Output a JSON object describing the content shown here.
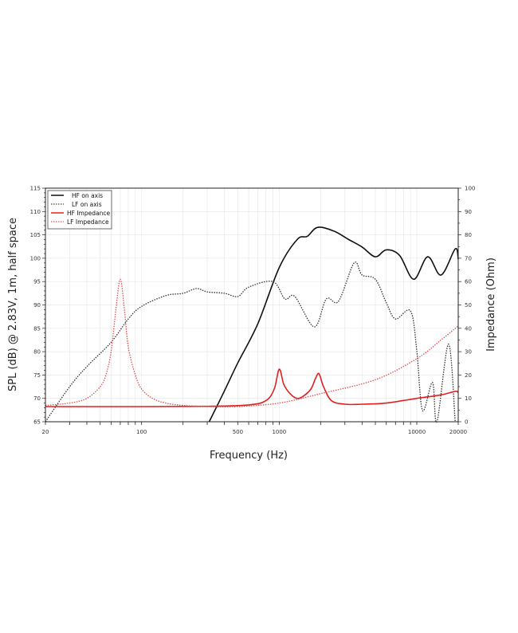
{
  "chart_data": {
    "type": "line",
    "title": "",
    "xlabel": "Frequency (Hz)",
    "ylabel": "SPL (dB) @ 2.83V, 1m, half space",
    "y2label": "Impedance (Ohm)",
    "xscale": "log",
    "xlim": [
      20,
      20000
    ],
    "ylim": [
      65,
      115
    ],
    "y2lim": [
      0,
      100
    ],
    "grid": true,
    "legend_position": "upper left",
    "x_ticks": [
      20,
      100,
      500,
      1000,
      10000,
      20000
    ],
    "x_tick_labels": [
      "20",
      "100",
      "500",
      "1000",
      "10000",
      "20000"
    ],
    "y_ticks": [
      65,
      70,
      75,
      80,
      85,
      90,
      95,
      100,
      105,
      110,
      115
    ],
    "y2_ticks": [
      0,
      10,
      20,
      30,
      40,
      50,
      60,
      70,
      80,
      90,
      100
    ],
    "series": [
      {
        "name": "HF on axis",
        "axis": "left",
        "color": "#111111",
        "style": "solid",
        "x": [
          310,
          400,
          500,
          700,
          1000,
          1350,
          1600,
          1900,
          2500,
          3200,
          4000,
          5000,
          6000,
          7500,
          9500,
          12000,
          15000,
          19000,
          20000
        ],
        "values": [
          65,
          71.6,
          77.6,
          86,
          98,
          104,
          104.7,
          106.6,
          105.8,
          104,
          102.4,
          100.3,
          101.8,
          100.6,
          95.5,
          100.3,
          96.4,
          102,
          99.8
        ]
      },
      {
        "name": "LF on axis",
        "axis": "left",
        "color": "#333333",
        "style": "dotted",
        "x": [
          20,
          30,
          40,
          60,
          80,
          100,
          150,
          200,
          250,
          300,
          400,
          500,
          600,
          900,
          1100,
          1300,
          1800,
          2200,
          2700,
          3500,
          4000,
          5000,
          6000,
          7000,
          9000,
          10000,
          11000,
          13000,
          14000,
          17000,
          19000
        ],
        "values": [
          65,
          72.5,
          76.8,
          82,
          87,
          89.7,
          92,
          92.5,
          93.5,
          92.8,
          92.5,
          91.8,
          93.8,
          95,
          91.3,
          91.8,
          85.3,
          91.3,
          90.8,
          99,
          96.4,
          95.5,
          90.5,
          87,
          88.7,
          80.2,
          67.4,
          73.4,
          65,
          81.6,
          65
        ]
      },
      {
        "name": "HF Impedance",
        "axis": "right",
        "color": "#e02020",
        "style": "solid",
        "x": [
          20,
          100,
          300,
          600,
          800,
          920,
          1000,
          1080,
          1200,
          1350,
          1500,
          1700,
          1850,
          1950,
          2100,
          2400,
          3000,
          4000,
          6000,
          10000,
          15000,
          19000,
          20000
        ],
        "values": [
          6.5,
          6.5,
          6.6,
          7.2,
          9,
          14,
          22.5,
          16,
          12,
          10,
          11,
          14,
          19,
          20.5,
          15,
          9,
          7.5,
          7.5,
          8,
          10,
          11.5,
          13,
          12.5
        ]
      },
      {
        "name": "LF Impedance",
        "axis": "right",
        "color": "#e05050",
        "style": "dotted",
        "x": [
          20,
          30,
          40,
          50,
          55,
          60,
          65,
          70,
          75,
          80,
          90,
          100,
          120,
          150,
          200,
          300,
          500,
          1000,
          2000,
          5000,
          10000,
          15000,
          20000
        ],
        "values": [
          7,
          8,
          10,
          15,
          20,
          30,
          48,
          61,
          48,
          32,
          20,
          14,
          10,
          8,
          7,
          6.5,
          6.5,
          8,
          12,
          18,
          27,
          35,
          41
        ]
      }
    ]
  },
  "legend": {
    "items": [
      {
        "label": "HF on axis"
      },
      {
        "label": "LF on axis"
      },
      {
        "label": "HF Impedance"
      },
      {
        "label": "LF Impedance"
      }
    ]
  },
  "axes": {
    "xlabel": "Frequency (Hz)",
    "ylabel": "SPL (dB) @ 2.83V, 1m, half space",
    "y2label": "Impedance (Ohm)"
  }
}
